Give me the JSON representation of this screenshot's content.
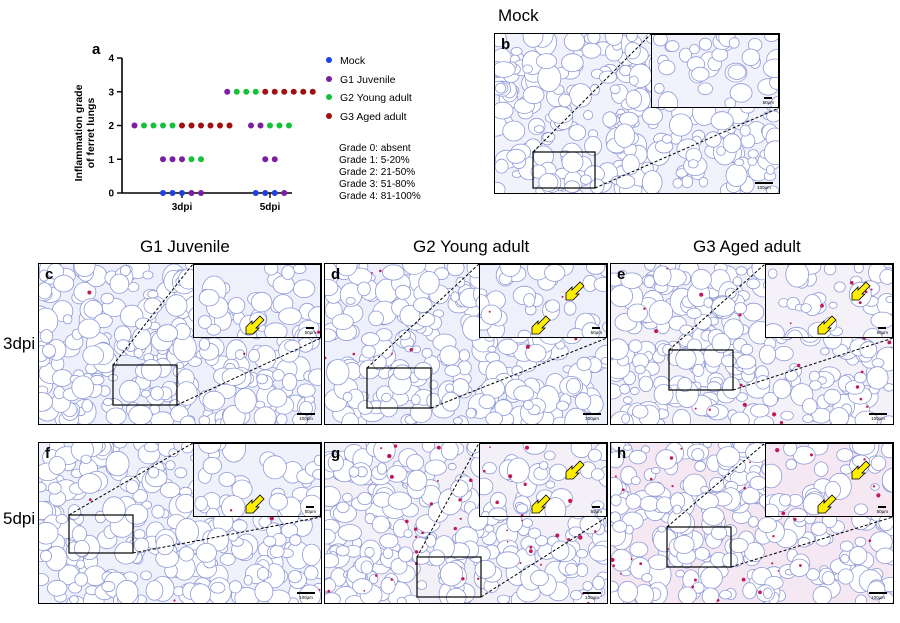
{
  "chart_data": {
    "type": "scatter",
    "panel_label": "a",
    "ylabel": "Inflammation grade of ferret lungs",
    "ylabel_lines": [
      "Inflammation grade",
      "of ferret lungs"
    ],
    "ylim": [
      0,
      4
    ],
    "yticks": [
      "0",
      "1",
      "2",
      "3",
      "4"
    ],
    "categories": [
      "3dpi",
      "5dpi"
    ],
    "series": [
      {
        "name": "Mock",
        "color": "#1f3fe0",
        "values": [
          [
            0,
            0,
            0
          ],
          [
            0,
            0,
            0
          ]
        ]
      },
      {
        "name": "G1 Juvenile",
        "color": "#7b1fa2",
        "values": [
          [
            0,
            0,
            1,
            1,
            1,
            2
          ],
          [
            0,
            1,
            1,
            2,
            2,
            3
          ]
        ]
      },
      {
        "name": "G2 Young adult",
        "color": "#16c13a",
        "values": [
          [
            1,
            1,
            2,
            2,
            2,
            2
          ],
          [
            2,
            2,
            2,
            3,
            3,
            3
          ]
        ]
      },
      {
        "name": "G3 Aged adult",
        "color": "#a01010",
        "values": [
          [
            2,
            2,
            2,
            2,
            2,
            2
          ],
          [
            3,
            3,
            3,
            3,
            3,
            3
          ]
        ]
      }
    ],
    "legend": [
      "Mock",
      "G1 Juvenile",
      "G2 Young adult",
      "G3 Aged adult"
    ],
    "grade_notes": [
      "Grade 0: absent",
      "Grade 1: 5-20%",
      "Grade 2: 21-50%",
      "Grade 3: 51-80%",
      "Grade 4: 81-100%"
    ]
  },
  "mock": {
    "title": "Mock",
    "label": "b",
    "scale_main": "100μm",
    "scale_inset": "50μm"
  },
  "columns": {
    "g1": "G1 Juvenile",
    "g2": "G2 Young adult",
    "g3": "G3 Aged adult"
  },
  "rows": {
    "r3": "3dpi",
    "r5": "5dpi"
  },
  "panels": {
    "c": {
      "label": "c",
      "scale_main": "100μm",
      "scale_inset": "50μm"
    },
    "d": {
      "label": "d",
      "scale_main": "100μm",
      "scale_inset": "50μm"
    },
    "e": {
      "label": "e",
      "scale_main": "100μm",
      "scale_inset": "50μm"
    },
    "f": {
      "label": "f",
      "scale_main": "100μm",
      "scale_inset": "50μm"
    },
    "g": {
      "label": "g",
      "scale_main": "100μm",
      "scale_inset": "50μm"
    },
    "h": {
      "label": "h",
      "scale_main": "100μm",
      "scale_inset": "50μm"
    }
  },
  "colors": {
    "arrow": "#ffee00",
    "tissue_bg": "#eef0fb",
    "tissue_line": "#8f9ad6",
    "stain": "#c2185b"
  }
}
